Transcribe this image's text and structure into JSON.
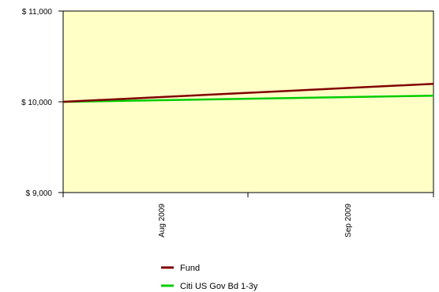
{
  "chart_data": {
    "type": "line",
    "x": [
      "2009-07-31",
      "2009-09-30"
    ],
    "x_ticks": [
      "Aug 2009",
      "Sep 2009"
    ],
    "y_ticks": [
      "$ 9,000",
      "$ 10,000",
      "$ 11,000"
    ],
    "ylim": [
      9000,
      11000
    ],
    "title": "",
    "xlabel": "",
    "ylabel": "",
    "grid": false,
    "legend_position": "bottom",
    "plot_background": "#FFFFC6",
    "series": [
      {
        "name": "Fund",
        "color": "#800000",
        "values": [
          10000,
          10198
        ]
      },
      {
        "name": "Citi US Gov Bd 1-3y",
        "color": "#00CC00",
        "values": [
          10000,
          10068
        ]
      }
    ]
  }
}
